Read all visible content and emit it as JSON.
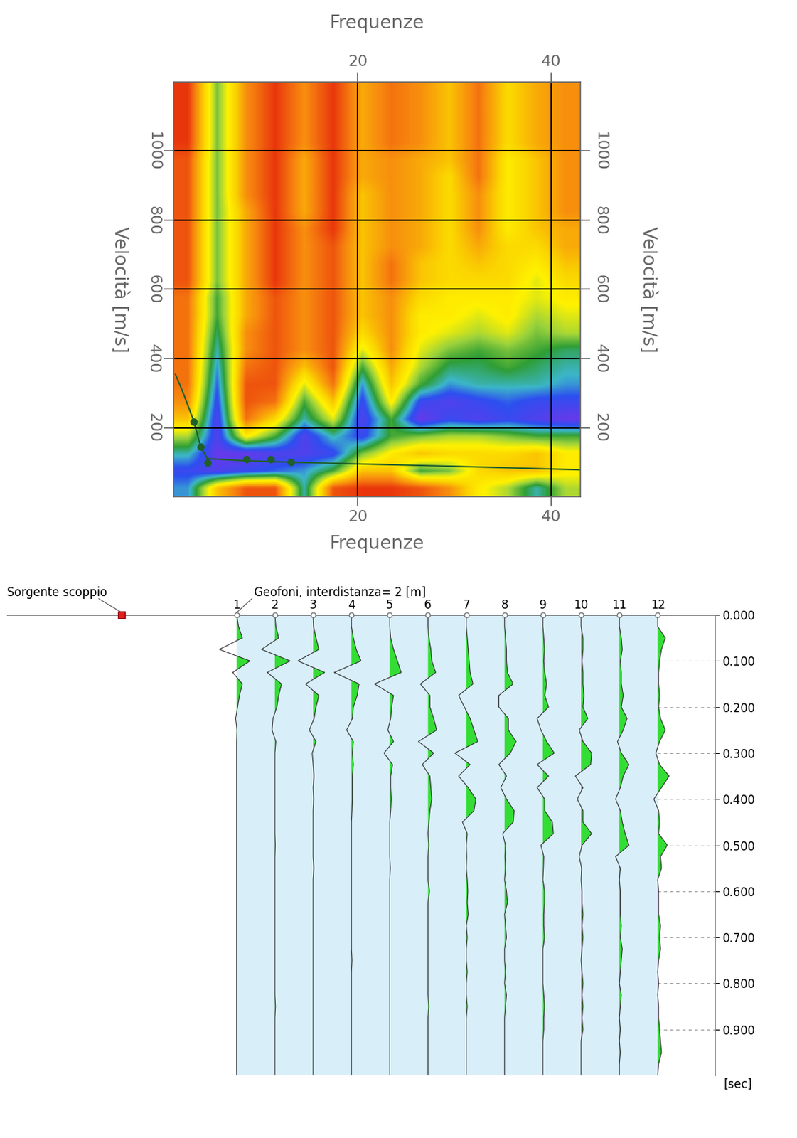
{
  "chart_data": [
    {
      "type": "heatmap",
      "xlabel": "Frequenze",
      "ylabel": "Velocità [m/s]",
      "xlim": [
        1,
        43
      ],
      "ylim": [
        0,
        1200
      ],
      "xticks": [
        20,
        40
      ],
      "yticks": [
        200,
        400,
        600,
        800,
        1000
      ],
      "grid": true,
      "value_range": [
        0,
        1
      ],
      "cells": [
        [
          0.75,
          0.3,
          0.1,
          0.1,
          0.7,
          0.1,
          0.05,
          0.05,
          0.1,
          0.2,
          0.4,
          0.5,
          0.7,
          0.5
        ],
        [
          0.85,
          0.9,
          0.85,
          0.8,
          0.75,
          0.6,
          0.3,
          0.3,
          0.6,
          0.55,
          0.35,
          0.3,
          0.3,
          0.4
        ],
        [
          0.7,
          0.95,
          0.95,
          0.9,
          0.9,
          0.85,
          0.55,
          0.4,
          0.3,
          0.35,
          0.35,
          0.35,
          0.3,
          0.4
        ],
        [
          0.5,
          0.9,
          0.4,
          0.6,
          0.9,
          0.7,
          0.85,
          0.6,
          0.55,
          0.5,
          0.5,
          0.55,
          0.6,
          0.6
        ],
        [
          0.3,
          0.9,
          0.15,
          0.35,
          0.7,
          0.45,
          0.9,
          0.6,
          0.95,
          0.85,
          0.9,
          0.85,
          0.9,
          0.95
        ],
        [
          0.2,
          0.85,
          0.1,
          0.15,
          0.6,
          0.3,
          0.85,
          0.4,
          0.85,
          0.9,
          0.85,
          0.8,
          0.85,
          0.85
        ],
        [
          0.15,
          0.8,
          0.1,
          0.1,
          0.45,
          0.15,
          0.75,
          0.3,
          0.6,
          0.75,
          0.7,
          0.7,
          0.7,
          0.75
        ],
        [
          0.15,
          0.75,
          0.15,
          0.1,
          0.3,
          0.1,
          0.6,
          0.25,
          0.5,
          0.65,
          0.65,
          0.6,
          0.65,
          0.7
        ],
        [
          0.15,
          0.7,
          0.2,
          0.1,
          0.2,
          0.1,
          0.45,
          0.2,
          0.45,
          0.55,
          0.6,
          0.55,
          0.6,
          0.65
        ],
        [
          0.15,
          0.65,
          0.2,
          0.1,
          0.2,
          0.1,
          0.35,
          0.2,
          0.4,
          0.45,
          0.5,
          0.45,
          0.55,
          0.5
        ],
        [
          0.15,
          0.6,
          0.25,
          0.1,
          0.2,
          0.1,
          0.3,
          0.2,
          0.4,
          0.4,
          0.45,
          0.4,
          0.5,
          0.45
        ],
        [
          0.15,
          0.6,
          0.25,
          0.1,
          0.2,
          0.1,
          0.3,
          0.2,
          0.35,
          0.4,
          0.4,
          0.4,
          0.45,
          0.4
        ],
        [
          0.1,
          0.55,
          0.25,
          0.05,
          0.2,
          0.1,
          0.3,
          0.15,
          0.3,
          0.35,
          0.35,
          0.35,
          0.45,
          0.35
        ],
        [
          0.1,
          0.55,
          0.25,
          0.05,
          0.2,
          0.1,
          0.3,
          0.15,
          0.3,
          0.35,
          0.3,
          0.35,
          0.4,
          0.3
        ],
        [
          0.1,
          0.55,
          0.25,
          0.05,
          0.2,
          0.1,
          0.3,
          0.2,
          0.25,
          0.35,
          0.25,
          0.35,
          0.35,
          0.25
        ],
        [
          0.1,
          0.55,
          0.25,
          0.05,
          0.2,
          0.05,
          0.3,
          0.2,
          0.25,
          0.35,
          0.2,
          0.4,
          0.3,
          0.25
        ],
        [
          0.1,
          0.55,
          0.25,
          0.05,
          0.25,
          0.05,
          0.3,
          0.2,
          0.25,
          0.35,
          0.2,
          0.4,
          0.3,
          0.2
        ],
        [
          0.1,
          0.55,
          0.2,
          0.05,
          0.25,
          0.05,
          0.3,
          0.2,
          0.25,
          0.35,
          0.2,
          0.4,
          0.3,
          0.2
        ],
        [
          0.1,
          0.55,
          0.2,
          0.05,
          0.25,
          0.05,
          0.25,
          0.2,
          0.25,
          0.35,
          0.15,
          0.4,
          0.3,
          0.2
        ],
        [
          0.1,
          0.55,
          0.2,
          0.05,
          0.25,
          0.05,
          0.25,
          0.2,
          0.25,
          0.3,
          0.15,
          0.4,
          0.3,
          0.2
        ],
        [
          0.05,
          0.55,
          0.2,
          0.05,
          0.2,
          0.05,
          0.25,
          0.15,
          0.2,
          0.3,
          0.15,
          0.35,
          0.25,
          0.2
        ],
        [
          0.05,
          0.55,
          0.2,
          0.05,
          0.2,
          0.05,
          0.25,
          0.15,
          0.2,
          0.3,
          0.15,
          0.35,
          0.25,
          0.2
        ],
        [
          0.05,
          0.55,
          0.2,
          0.05,
          0.2,
          0.05,
          0.25,
          0.15,
          0.2,
          0.3,
          0.15,
          0.35,
          0.25,
          0.2
        ],
        [
          0.05,
          0.55,
          0.2,
          0.05,
          0.2,
          0.05,
          0.25,
          0.15,
          0.2,
          0.3,
          0.15,
          0.35,
          0.25,
          0.2
        ]
      ],
      "series": [
        {
          "type": "line",
          "color": "#1f5f2a",
          "line_style": "solid",
          "x": [
            1.2,
            2,
            3.1,
            3.8,
            4.5,
            8.5,
            13,
            20,
            30,
            43
          ],
          "values": [
            354,
            300,
            218,
            144,
            110,
            104,
            100,
            95,
            88,
            78
          ]
        },
        {
          "type": "scatter",
          "color": "#1f5f2a",
          "marker": "o",
          "x": [
            3.1,
            3.8,
            4.5,
            8.5,
            11,
            13.1
          ],
          "values": [
            218,
            144,
            98,
            108,
            108,
            100
          ]
        }
      ]
    },
    {
      "type": "seismogram",
      "source_label": "Sorgente scoppio",
      "source_x": -6,
      "geophone_label": "Geofoni, interdistanza= 2 [m]",
      "ylabel": "[sec]",
      "xlim": [
        -12,
        25
      ],
      "ylim": [
        0,
        1.0
      ],
      "tick_labels": "y",
      "color": "#33dd33",
      "yticks": [
        {
          "value": 0,
          "label": "0.000"
        },
        {
          "value": 0.1,
          "label": "0.100"
        },
        {
          "value": 0.2,
          "label": "0.200"
        },
        {
          "value": 0.3,
          "label": "0.300"
        },
        {
          "value": 0.4,
          "label": "0.400"
        },
        {
          "value": 0.5,
          "label": "0.500"
        },
        {
          "value": 0.6,
          "label": "0.600"
        },
        {
          "value": 0.7,
          "label": "0.700"
        },
        {
          "value": 0.8,
          "label": "0.800"
        },
        {
          "value": 0.9,
          "label": "0.900"
        }
      ],
      "t": [
        0,
        0.025,
        0.05,
        0.075,
        0.1,
        0.125,
        0.15,
        0.175,
        0.2,
        0.225,
        0.25,
        0.275,
        0.3,
        0.325,
        0.35,
        0.375,
        0.4,
        0.425,
        0.45,
        0.475,
        0.5,
        0.525,
        0.55,
        0.575,
        0.6,
        0.625,
        0.65,
        0.675,
        0.7,
        0.725,
        0.75,
        0.775,
        0.8,
        0.825,
        0.85,
        0.875,
        0.9,
        0.925,
        0.95,
        0.975,
        1.0
      ],
      "traces": [
        {
          "name": "1",
          "x": 0,
          "values": [
            0,
            0.1,
            0.3,
            -0.9,
            0.7,
            -0.2,
            0.3,
            0.15,
            0.05,
            -0.05,
            0.02,
            0,
            0,
            0,
            0,
            0,
            0,
            0,
            0,
            0,
            0,
            0,
            0,
            0,
            0,
            0,
            0,
            0,
            0,
            0,
            0,
            0,
            0,
            0,
            0,
            0,
            0,
            0,
            0,
            0,
            0
          ]
        },
        {
          "name": "2",
          "x": 2,
          "values": [
            0,
            0.05,
            0.2,
            -0.7,
            0.8,
            -0.4,
            0.35,
            0.2,
            0.1,
            -0.1,
            -0.15,
            0.05,
            0,
            0,
            0,
            0,
            0,
            0,
            0,
            0,
            0.02,
            0,
            0,
            0,
            0,
            0,
            0,
            0,
            0,
            0,
            0,
            0,
            0,
            0,
            0.03,
            0,
            0,
            0,
            0,
            0,
            0
          ]
        },
        {
          "name": "3",
          "x": 4,
          "values": [
            0,
            0.02,
            0.15,
            0.3,
            -0.8,
            0.6,
            -0.4,
            0.3,
            0.15,
            0.05,
            -0.2,
            0.15,
            -0.05,
            0,
            0.05,
            0,
            0.03,
            0,
            0,
            0,
            0,
            0,
            0.04,
            0,
            0,
            0,
            0,
            0,
            0,
            0,
            0,
            0,
            0,
            0,
            0,
            0,
            0,
            0,
            0,
            0,
            0
          ]
        },
        {
          "name": "4",
          "x": 6,
          "values": [
            0,
            0,
            0.1,
            0.25,
            0.5,
            -0.9,
            0.4,
            0.3,
            0.1,
            0.05,
            -0.25,
            0.1,
            0.05,
            0.1,
            0.05,
            0.05,
            0.05,
            0.03,
            0,
            0,
            0,
            0,
            0,
            0,
            0,
            0,
            0,
            0,
            0,
            0,
            0.03,
            0,
            0,
            0,
            0,
            0,
            0,
            0,
            0,
            0,
            0
          ]
        },
        {
          "name": "5",
          "x": 8,
          "values": [
            0,
            0,
            0.05,
            0.2,
            0.4,
            0.6,
            -0.8,
            0.2,
            0.1,
            0.05,
            -0.1,
            0.2,
            -0.3,
            0.15,
            0.05,
            0.05,
            0.08,
            0.05,
            0,
            0,
            0,
            0,
            0.03,
            0,
            0,
            0,
            0,
            0,
            0,
            0,
            0,
            0,
            0,
            0,
            0,
            0,
            0,
            0,
            0,
            0,
            0
          ]
        },
        {
          "name": "6",
          "x": 10,
          "values": [
            0,
            0,
            0.05,
            0.15,
            0.2,
            0.4,
            -0.4,
            0.1,
            0.1,
            0.3,
            0.45,
            -0.5,
            0.3,
            -0.3,
            0.1,
            0.15,
            0.2,
            0.1,
            0.05,
            0,
            0.05,
            0,
            0,
            0,
            0.08,
            0,
            0,
            0,
            0,
            0,
            0,
            0,
            0,
            0,
            0.05,
            0,
            0,
            0,
            0,
            0,
            0
          ]
        },
        {
          "name": "7",
          "x": 12,
          "values": [
            0,
            0,
            0.05,
            0.1,
            0.15,
            0.2,
            0.35,
            -0.4,
            -0.1,
            0.2,
            0.4,
            0.6,
            -0.6,
            0.2,
            -0.4,
            0.1,
            0.5,
            0.4,
            -0.2,
            0.05,
            0,
            0.02,
            0,
            0.05,
            0.08,
            0.05,
            0.1,
            0,
            0.05,
            0,
            0,
            0.05,
            0,
            0,
            0.05,
            0,
            0,
            0,
            0,
            0,
            0
          ]
        },
        {
          "name": "8",
          "x": 14,
          "values": [
            0,
            0,
            0.05,
            0.1,
            0.1,
            0.15,
            0.45,
            -0.3,
            -0.3,
            0.2,
            0.2,
            0.6,
            0.3,
            -0.3,
            0.1,
            -0.2,
            0.1,
            0.5,
            0.45,
            -0.1,
            0.05,
            0.02,
            0.05,
            0,
            0.1,
            0.15,
            0,
            0.05,
            0.1,
            0,
            0,
            0.05,
            0,
            0.1,
            0.05,
            0,
            0,
            0,
            0,
            0,
            0
          ]
        },
        {
          "name": "9",
          "x": 16,
          "values": [
            0,
            0,
            0.05,
            0.1,
            0.05,
            0.1,
            0.2,
            0.1,
            0.3,
            -0.3,
            -0.1,
            0.2,
            0.6,
            -0.3,
            0.3,
            -0.3,
            0.1,
            0.1,
            0.5,
            0.55,
            -0.1,
            0.05,
            0.03,
            0,
            0.1,
            0.1,
            0.05,
            0.05,
            0.1,
            0,
            0,
            0,
            0,
            0.05,
            0.1,
            0.05,
            0.05,
            0,
            0,
            0,
            0
          ]
        },
        {
          "name": "10",
          "x": 18,
          "values": [
            0,
            0,
            0.1,
            0.1,
            0.05,
            0.1,
            0.1,
            0.15,
            0.1,
            0.35,
            -0.1,
            0.1,
            0.55,
            0.5,
            -0.3,
            0.1,
            -0.2,
            0.1,
            0.1,
            0.55,
            0.05,
            -0.1,
            0.03,
            0,
            0.05,
            0.05,
            0.1,
            0.05,
            0.1,
            0.05,
            0,
            0.05,
            0.1,
            0.05,
            0.1,
            0.05,
            0.1,
            0,
            0,
            0,
            0
          ]
        },
        {
          "name": "11",
          "x": 20,
          "values": [
            0,
            0,
            0.1,
            0.15,
            0.05,
            0.1,
            0.1,
            0.2,
            0.1,
            0.4,
            0.2,
            -0.1,
            0.1,
            0.5,
            0.2,
            0.05,
            -0.2,
            0.05,
            0.15,
            0.3,
            0.5,
            -0.2,
            0.05,
            0,
            0.05,
            0.05,
            0.05,
            0.1,
            0.05,
            0.15,
            0.1,
            0.05,
            0,
            0.1,
            0.05,
            0,
            0.05,
            0,
            0.05,
            0,
            0
          ]
        },
        {
          "name": "12",
          "x": 22,
          "values": [
            0,
            0,
            0.4,
            0.2,
            0.1,
            0.05,
            0.05,
            0.1,
            0.05,
            0.15,
            0.4,
            0.1,
            -0.1,
            0.1,
            0.6,
            0.2,
            -0.2,
            0.05,
            0.1,
            0.05,
            0.5,
            0.15,
            0.2,
            0,
            0.05,
            0.05,
            0.05,
            0.15,
            0.1,
            0.15,
            0.05,
            0,
            0.05,
            0,
            0.05,
            0.05,
            0.1,
            0.15,
            0.2,
            0.05,
            0
          ]
        }
      ]
    }
  ]
}
